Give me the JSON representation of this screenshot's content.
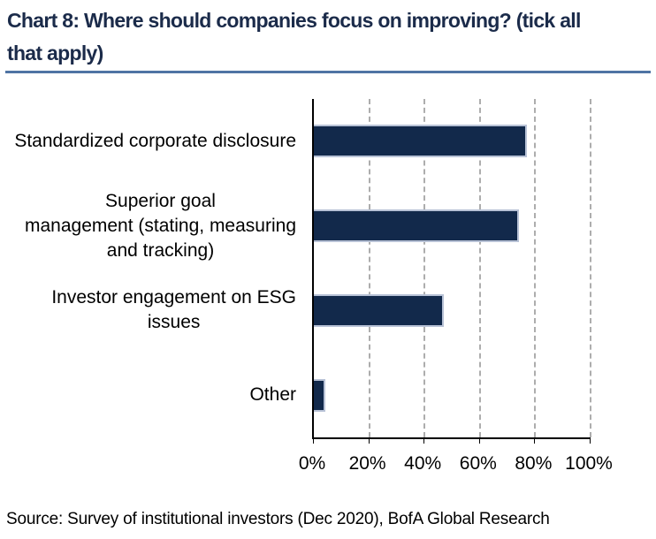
{
  "title": "Chart 8: Where should companies focus on improving? (tick all\nthat apply)",
  "source": "Source: Survey of institutional investors (Dec 2020), BofA Global Research",
  "colors": {
    "bar_fill": "#12294b",
    "bar_border": "#b8c2d6",
    "title_text": "#1b2b4a",
    "title_rule": "#4f74a4",
    "gridline": "#adadad",
    "axis": "#000000"
  },
  "chart_data": {
    "type": "bar",
    "orientation": "horizontal",
    "title": "Chart 8: Where should companies focus on improving? (tick all that apply)",
    "categories": [
      "Standardized corporate disclosure",
      "Superior goal\nmanagement (stating, measuring\nand tracking)",
      "Investor engagement on ESG\nissues",
      "Other"
    ],
    "values": [
      77,
      74,
      47,
      4
    ],
    "value_unit": "%",
    "xlim": [
      0,
      100
    ],
    "x_tick_values": [
      0,
      20,
      40,
      60,
      80,
      100
    ],
    "x_tick_labels": [
      "0%",
      "20%",
      "40%",
      "60%",
      "80%",
      "100%"
    ],
    "grid": "vertical-dashed",
    "legend": "none"
  }
}
